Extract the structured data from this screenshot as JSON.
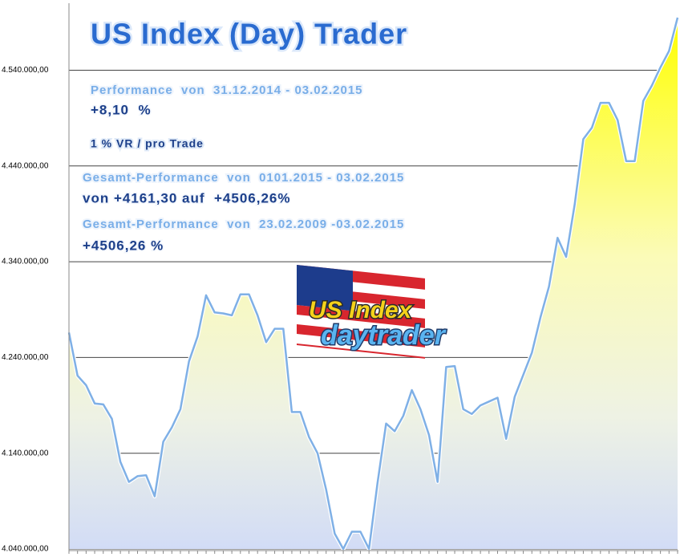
{
  "chart_data": {
    "type": "area",
    "title": "US Index (Day) Trader",
    "annotations": [
      "Performance  von  31.12.2014 - 03.02.2015",
      "+8,10  %",
      "1 % VR / pro Trade",
      "Gesamt-Performance  von  0101.2015 - 03.02.2015",
      "von +4161,30 auf  +4506,26%",
      "Gesamt-Performance  von  23.02.2009 -03.02.2015",
      "+4506,26 %"
    ],
    "logo": [
      "US Index",
      "daytrader"
    ],
    "values": [
      4266000,
      4221000,
      4211000,
      4192000,
      4191000,
      4176000,
      4131000,
      4110000,
      4116000,
      4117000,
      4095000,
      4152000,
      4167000,
      4186000,
      4236000,
      4262000,
      4305000,
      4287000,
      4286000,
      4284000,
      4306000,
      4306000,
      4284000,
      4256000,
      4270000,
      4270000,
      4183000,
      4183000,
      4157000,
      4140000,
      4102000,
      4056000,
      4040000,
      4058000,
      4058000,
      4040000,
      4109000,
      4171000,
      4163000,
      4179000,
      4206000,
      4186000,
      4159000,
      4110000,
      4230000,
      4231000,
      4186000,
      4181000,
      4190000,
      4194000,
      4198000,
      4155000,
      4199000,
      4222000,
      4245000,
      4282000,
      4314000,
      4365000,
      4345000,
      4400000,
      4468000,
      4480000,
      4506000,
      4506000,
      4488000,
      4445000,
      4445000,
      4508000,
      4524000,
      4543000,
      4560000,
      4595000
    ],
    "color": "#7fb0e6",
    "ylim": [
      4040000,
      4610000
    ],
    "yticks": [
      {
        "value": 4040000,
        "label": "4.040.000,00"
      },
      {
        "value": 4140000,
        "label": "4.140.000,00"
      },
      {
        "value": 4240000,
        "label": "4.240.000,00"
      },
      {
        "value": 4340000,
        "label": "4.340.000,00"
      },
      {
        "value": 4440000,
        "label": "4.440.000,00"
      },
      {
        "value": 4540000,
        "label": "4.540.000,00"
      }
    ],
    "grid": true
  }
}
